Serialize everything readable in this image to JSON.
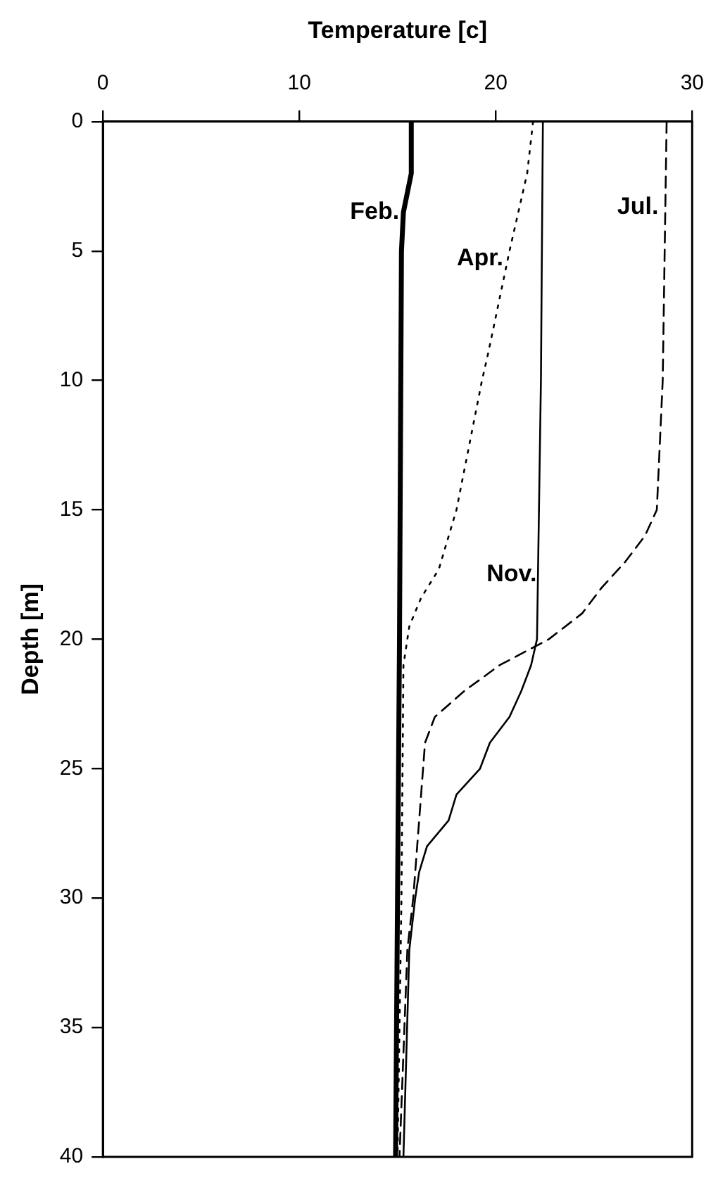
{
  "chart_data": {
    "type": "line",
    "xlabel": "Temperature [c]",
    "ylabel": "Depth [m]",
    "xlim": [
      0,
      30
    ],
    "xticks": [
      0,
      10,
      20,
      30
    ],
    "ylim": [
      40,
      0
    ],
    "yticks": [
      0,
      5,
      10,
      15,
      20,
      25,
      30,
      35,
      40
    ],
    "grid": false,
    "legend": false,
    "marker": "none",
    "series": [
      {
        "color": "#000000",
        "line_style": "solid",
        "x": [
          15.7,
          15.7,
          15.3,
          15.2,
          15.1,
          14.9
        ],
        "values": [
          0,
          2,
          3.5,
          5,
          20,
          40
        ]
      },
      {
        "color": "#000000",
        "line_style": "dotted",
        "x": [
          21.9,
          21.6,
          20.7,
          19.6,
          19.3,
          18.0,
          17.1,
          16.2,
          15.6,
          15.3,
          15.2,
          15.0
        ],
        "values": [
          0,
          2,
          5,
          9,
          10,
          15,
          17.3,
          18.4,
          19.5,
          21,
          30,
          40
        ]
      },
      {
        "color": "#000000",
        "line_style": "solid",
        "x": [
          22.4,
          22.3,
          22.1,
          21.8,
          21.3,
          20.7,
          19.7,
          19.2,
          18.0,
          17.6,
          16.5,
          16.1,
          15.9,
          15.6,
          15.3
        ],
        "values": [
          0,
          10,
          20,
          21,
          22,
          23,
          24,
          25,
          26,
          27,
          28,
          29,
          30,
          32,
          40
        ]
      },
      {
        "color": "#000000",
        "line_style": "dashed",
        "x": [
          28.7,
          28.5,
          28.2,
          27.6,
          26.6,
          25.4,
          24.4,
          22.7,
          20.2,
          18.4,
          16.9,
          16.4,
          16.3,
          15.8,
          15.5,
          15.1
        ],
        "values": [
          0,
          10,
          15,
          16,
          17,
          18,
          19,
          20,
          21,
          22,
          23,
          24,
          25,
          30,
          32,
          40
        ]
      }
    ],
    "annotations": [
      {
        "text": "Feb.",
        "x": 15.3,
        "y": 3.5
      },
      {
        "text": "Apr.",
        "x": 20.6,
        "y": 5.3
      },
      {
        "text": "Jul.",
        "x": 28.5,
        "y": 3.3
      },
      {
        "text": "Nov.",
        "x": 22.3,
        "y": 17.5
      }
    ]
  }
}
